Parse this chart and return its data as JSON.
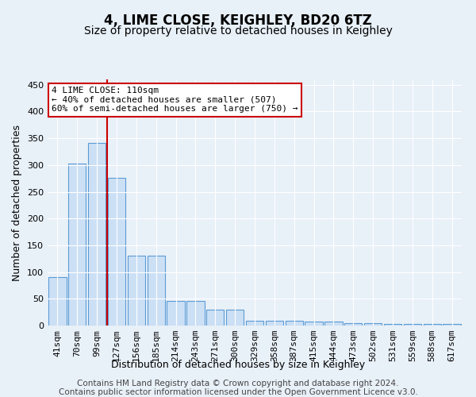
{
  "title": "4, LIME CLOSE, KEIGHLEY, BD20 6TZ",
  "subtitle": "Size of property relative to detached houses in Keighley",
  "xlabel": "Distribution of detached houses by size in Keighley",
  "ylabel": "Number of detached properties",
  "footer_line1": "Contains HM Land Registry data © Crown copyright and database right 2024.",
  "footer_line2": "Contains public sector information licensed under the Open Government Licence v3.0.",
  "categories": [
    "41sqm",
    "70sqm",
    "99sqm",
    "127sqm",
    "156sqm",
    "185sqm",
    "214sqm",
    "243sqm",
    "271sqm",
    "300sqm",
    "329sqm",
    "358sqm",
    "387sqm",
    "415sqm",
    "444sqm",
    "473sqm",
    "502sqm",
    "531sqm",
    "559sqm",
    "588sqm",
    "617sqm"
  ],
  "values": [
    91,
    303,
    341,
    276,
    131,
    131,
    46,
    46,
    30,
    30,
    9,
    9,
    9,
    7,
    7,
    5,
    5,
    3,
    3,
    3,
    3
  ],
  "bar_color": "#cce0f5",
  "bar_edge_color": "#5b9bd5",
  "red_line_x": 2.5,
  "annotation_title": "4 LIME CLOSE: 110sqm",
  "annotation_line1": "← 40% of detached houses are smaller (507)",
  "annotation_line2": "60% of semi-detached houses are larger (750) →",
  "annotation_box_color": "#ffffff",
  "annotation_box_edge_color": "#cc0000",
  "red_line_color": "#cc0000",
  "ylim": [
    0,
    460
  ],
  "yticks": [
    0,
    50,
    100,
    150,
    200,
    250,
    300,
    350,
    400,
    450
  ],
  "background_color": "#e8f0f8",
  "plot_background_color": "#e8f0f8",
  "title_fontsize": 12,
  "subtitle_fontsize": 10,
  "axis_label_fontsize": 9,
  "tick_fontsize": 8,
  "footer_fontsize": 7.5
}
